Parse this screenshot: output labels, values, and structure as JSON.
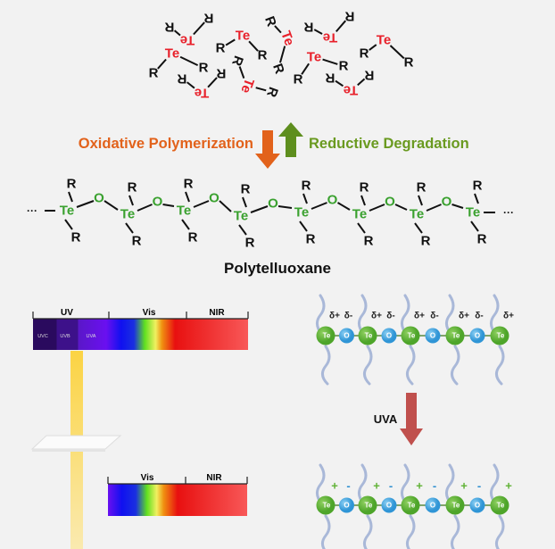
{
  "atoms": {
    "te": "Te",
    "r": "R",
    "o": "O",
    "ellipsis": "···"
  },
  "reaction": {
    "forward_label": "Oxidative Polymerization",
    "reverse_label": "Reductive Degradation",
    "forward_color": "#e2621b",
    "reverse_color": "#6a9a20"
  },
  "polymer_name": "Polytelluoxane",
  "colors": {
    "te_monomer": "#e8202a",
    "te_polymer": "#3aa12f",
    "te_bead": "#5fb234",
    "o_bead": "#3aa0dc",
    "uva_arrow": "#c0504d"
  },
  "spectrum_full": {
    "regions": [
      "UV",
      "Vis",
      "NIR"
    ],
    "uv_sub": [
      "UVC",
      "UVB",
      "UVA"
    ]
  },
  "spectrum_filtered": {
    "regions": [
      "Vis",
      "NIR"
    ]
  },
  "chain_before": {
    "charges_te": "δ+",
    "charges_o": "δ-"
  },
  "chain_after": {
    "charges_te": "+",
    "charges_o": "-"
  },
  "stimulus_label": "UVA"
}
